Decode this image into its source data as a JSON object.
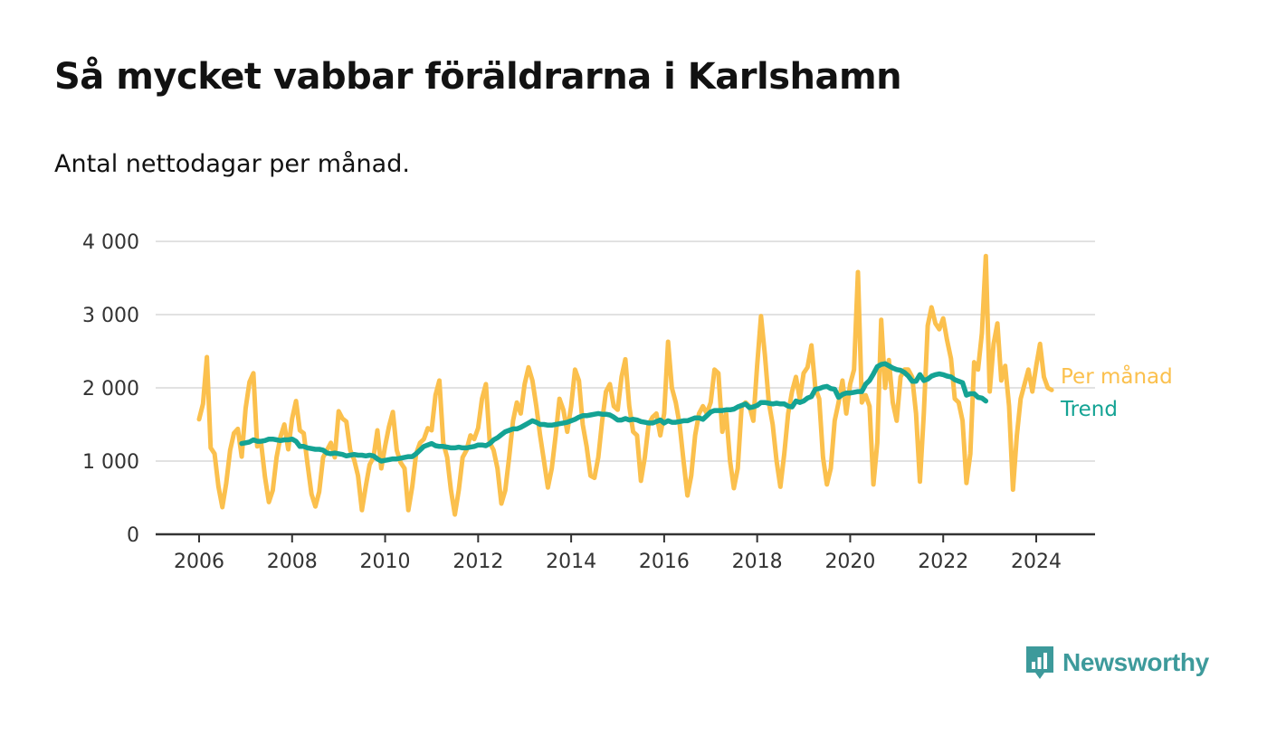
{
  "title": "Så mycket vabbar föräldrarna i Karlshamn",
  "subtitle": "Antal nettodagar per månad.",
  "brand": {
    "name": "Newsworthy",
    "icon": "newsworthy-logo-icon",
    "color": "#3d9a9b"
  },
  "chart_data": {
    "type": "line",
    "title": "Så mycket vabbar föräldrarna i Karlshamn",
    "xlabel": "",
    "ylabel": "",
    "xlim": [
      2005.7,
      2025.2
    ],
    "ylim": [
      0,
      4000
    ],
    "y_ticks": [
      0,
      1000,
      2000,
      3000,
      4000
    ],
    "y_tick_labels": [
      "0",
      "1 000",
      "2 000",
      "3 000",
      "4 000"
    ],
    "x_ticks": [
      2006,
      2008,
      2010,
      2012,
      2014,
      2016,
      2018,
      2020,
      2022,
      2024
    ],
    "x_tick_labels": [
      "2006",
      "2008",
      "2010",
      "2012",
      "2014",
      "2016",
      "2018",
      "2020",
      "2022",
      "2024"
    ],
    "grid": true,
    "legend": "inline-right",
    "series": [
      {
        "name": "Per månad",
        "color": "#fbc04d",
        "x_start": 2006.0,
        "x_step": 0.08333,
        "values": [
          1570,
          1780,
          2420,
          1180,
          1100,
          650,
          370,
          700,
          1150,
          1380,
          1440,
          1060,
          1720,
          2080,
          2200,
          1200,
          1250,
          780,
          440,
          600,
          1050,
          1330,
          1500,
          1160,
          1580,
          1820,
          1420,
          1380,
          950,
          550,
          380,
          580,
          1050,
          1150,
          1250,
          1050,
          1680,
          1580,
          1540,
          1150,
          1020,
          800,
          330,
          650,
          950,
          1050,
          1420,
          900,
          1200,
          1470,
          1670,
          1150,
          980,
          900,
          330,
          650,
          1100,
          1250,
          1300,
          1450,
          1420,
          1900,
          2100,
          1250,
          1050,
          600,
          270,
          600,
          1050,
          1150,
          1350,
          1300,
          1450,
          1850,
          2050,
          1250,
          1150,
          900,
          420,
          600,
          1050,
          1550,
          1800,
          1650,
          2050,
          2280,
          2100,
          1750,
          1350,
          1000,
          640,
          900,
          1350,
          1850,
          1700,
          1400,
          1750,
          2250,
          2100,
          1500,
          1200,
          800,
          770,
          1050,
          1550,
          1950,
          2050,
          1750,
          1700,
          2150,
          2390,
          1750,
          1400,
          1350,
          730,
          1050,
          1500,
          1600,
          1650,
          1350,
          1650,
          2630,
          2000,
          1800,
          1500,
          1000,
          530,
          800,
          1350,
          1650,
          1750,
          1650,
          1800,
          2250,
          2200,
          1400,
          1650,
          1000,
          630,
          900,
          1750,
          1800,
          1750,
          1550,
          2300,
          2980,
          2450,
          1800,
          1500,
          1000,
          650,
          1100,
          1650,
          1950,
          2150,
          1850,
          2200,
          2280,
          2580,
          2000,
          1850,
          1050,
          680,
          900,
          1550,
          1800,
          2100,
          1650,
          2050,
          2250,
          3580,
          1800,
          1900,
          1750,
          680,
          1250,
          2930,
          2000,
          2380,
          1800,
          1550,
          2150,
          2250,
          2250,
          2150,
          1650,
          720,
          1650,
          2850,
          3100,
          2880,
          2800,
          2950,
          2650,
          2400,
          1850,
          1800,
          1550,
          700,
          1100,
          2350,
          2250,
          2750,
          3800,
          1950,
          2600,
          2880,
          2100,
          2300,
          1750,
          610,
          1350,
          1850,
          2050,
          2250,
          1950,
          2300,
          2600,
          2150,
          2000,
          1970
        ]
      },
      {
        "name": "Trend",
        "color": "#14a394",
        "x_start": 2006.917,
        "x_step": 0.08333,
        "values": [
          1240,
          1250,
          1260,
          1290,
          1270,
          1270,
          1280,
          1300,
          1300,
          1290,
          1280,
          1290,
          1290,
          1300,
          1270,
          1200,
          1200,
          1180,
          1170,
          1160,
          1160,
          1150,
          1110,
          1100,
          1110,
          1100,
          1090,
          1070,
          1080,
          1090,
          1080,
          1080,
          1070,
          1080,
          1070,
          1030,
          1000,
          1010,
          1020,
          1030,
          1030,
          1040,
          1050,
          1060,
          1060,
          1100,
          1150,
          1200,
          1220,
          1240,
          1210,
          1200,
          1200,
          1190,
          1180,
          1180,
          1190,
          1180,
          1180,
          1190,
          1200,
          1220,
          1220,
          1210,
          1240,
          1290,
          1320,
          1360,
          1400,
          1420,
          1440,
          1440,
          1460,
          1490,
          1520,
          1550,
          1530,
          1500,
          1500,
          1490,
          1490,
          1500,
          1510,
          1520,
          1530,
          1550,
          1570,
          1600,
          1620,
          1620,
          1630,
          1640,
          1650,
          1640,
          1640,
          1630,
          1600,
          1560,
          1560,
          1580,
          1560,
          1570,
          1560,
          1540,
          1530,
          1520,
          1520,
          1540,
          1560,
          1520,
          1550,
          1530,
          1530,
          1540,
          1550,
          1550,
          1570,
          1590,
          1590,
          1570,
          1620,
          1670,
          1690,
          1690,
          1690,
          1700,
          1700,
          1710,
          1740,
          1760,
          1780,
          1730,
          1740,
          1760,
          1800,
          1800,
          1790,
          1780,
          1790,
          1780,
          1780,
          1750,
          1740,
          1820,
          1800,
          1820,
          1860,
          1880,
          1980,
          1990,
          2010,
          2020,
          1990,
          1980,
          1870,
          1910,
          1930,
          1930,
          1940,
          1950,
          1950,
          2050,
          2100,
          2190,
          2290,
          2320,
          2330,
          2300,
          2270,
          2250,
          2240,
          2210,
          2160,
          2090,
          2090,
          2180,
          2100,
          2120,
          2160,
          2180,
          2190,
          2180,
          2160,
          2150,
          2110,
          2090,
          2070,
          1900,
          1920,
          1920,
          1870,
          1860,
          1820
        ]
      }
    ]
  }
}
